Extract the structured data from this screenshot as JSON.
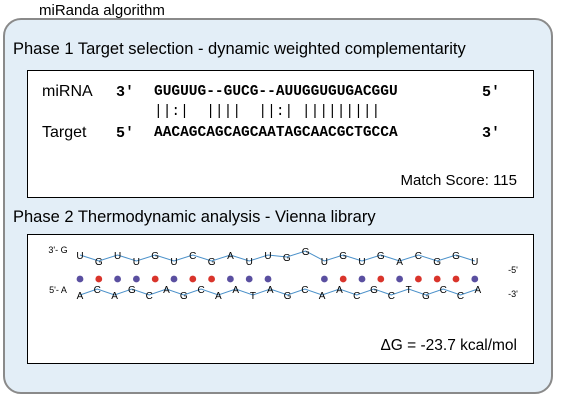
{
  "header": {
    "title": "miRanda algorithm"
  },
  "phase1": {
    "title": "Phase 1 Target selection - dynamic weighted complementarity",
    "mirna_label": "miRNA",
    "target_label": "Target",
    "mirna_end5": "3'",
    "mirna_seq": "GUGUUG--GUCG--AUUGGUGUGACGGU",
    "mirna_end3": "5'",
    "pairing": "||:|  ||||  ||:| |||||||||",
    "target_end5": "5'",
    "target_seq": "AACAGCAGCAGCAATAGCAACGCTGCCA",
    "target_end3": "3'",
    "match_score_label": "Match Score: 115"
  },
  "phase2": {
    "title": "Phase 2 Thermodynamic analysis -  Vienna library",
    "dg_label": "ΔG = -23.7 kcal/mol",
    "top_strand": {
      "end_left": "3'- G",
      "end_right": "-5'",
      "bases": [
        "U",
        "G",
        "U",
        "U",
        "G",
        "U",
        "C",
        "G",
        "A",
        "U",
        "U",
        "G",
        "G",
        "U",
        "G",
        "U",
        "G",
        "A",
        "C",
        "G",
        "G",
        "U"
      ]
    },
    "bottom_strand": {
      "end_left": "5'- A",
      "end_right": "-3'",
      "bases": [
        "A",
        "C",
        "A",
        "G",
        "C",
        "A",
        "G",
        "C",
        "A",
        "A",
        "T",
        "A",
        "G",
        "C",
        "A",
        "A",
        "C",
        "G",
        "C",
        "T",
        "G",
        "C",
        "C",
        "A"
      ]
    },
    "colors": {
      "gc_pair": "#d9342b",
      "au_pair": "#5a4fa0",
      "gu_pair": "#5a4fa0",
      "line": "#4a90c9"
    }
  }
}
